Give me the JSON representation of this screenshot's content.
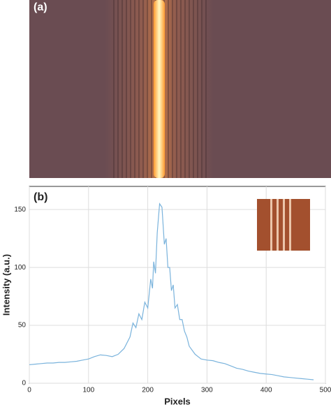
{
  "image_panel": {
    "label": "(a)"
  },
  "chart_data": {
    "type": "line",
    "panel_label": "(b)",
    "x_label": "Pixels",
    "y_label": "Intensity (a.u.)",
    "xlim": [
      0,
      500
    ],
    "ylim": [
      0,
      170
    ],
    "xticks": [
      0,
      100,
      200,
      300,
      400,
      500
    ],
    "yticks": [
      0,
      50,
      100,
      150
    ],
    "grid": true,
    "x": [
      0,
      10,
      20,
      30,
      40,
      50,
      60,
      70,
      80,
      90,
      100,
      110,
      120,
      130,
      140,
      150,
      160,
      170,
      175,
      180,
      185,
      190,
      195,
      200,
      205,
      208,
      210,
      213,
      216,
      220,
      224,
      228,
      231,
      234,
      237,
      240,
      243,
      246,
      250,
      254,
      258,
      262,
      266,
      270,
      280,
      290,
      300,
      310,
      320,
      330,
      340,
      350,
      360,
      370,
      380,
      390,
      400,
      410,
      420,
      430,
      440,
      450,
      460,
      470,
      480
    ],
    "series": [
      {
        "color": "#7ab3dc",
        "values": [
          16,
          16.5,
          17,
          17.5,
          17.5,
          18,
          18,
          18.5,
          19,
          20,
          21,
          23,
          24.5,
          24,
          23,
          25,
          30,
          40,
          52,
          48,
          60,
          55,
          70,
          65,
          90,
          82,
          105,
          95,
          130,
          155,
          152,
          120,
          125,
          100,
          100,
          80,
          85,
          65,
          68,
          55,
          55,
          45,
          40,
          32,
          25,
          21,
          20,
          19.5,
          18,
          17,
          15,
          13,
          12,
          10.5,
          9.5,
          8.5,
          8,
          7.5,
          6.5,
          5.5,
          5,
          4.5,
          4,
          3.5,
          3
        ]
      }
    ]
  }
}
